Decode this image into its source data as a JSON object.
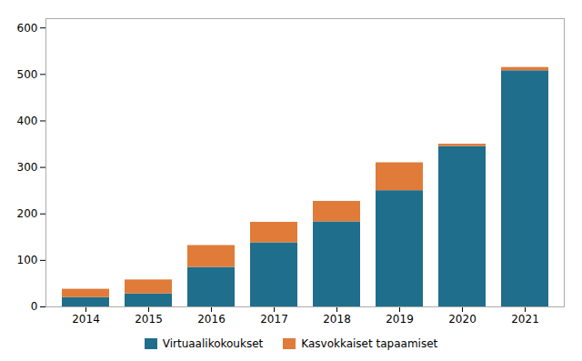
{
  "chart_data": {
    "type": "bar",
    "stacked": true,
    "categories": [
      "2014",
      "2015",
      "2016",
      "2017",
      "2018",
      "2019",
      "2020",
      "2021"
    ],
    "series": [
      {
        "name": "Virtuaalikokoukset",
        "color": "#1f6e8c",
        "values": [
          20,
          28,
          85,
          138,
          183,
          250,
          345,
          508
        ]
      },
      {
        "name": "Kasvokkaiset tapaamiset",
        "color": "#e07b39",
        "values": [
          18,
          30,
          47,
          44,
          44,
          60,
          5,
          7
        ]
      }
    ],
    "ylim": [
      0,
      620
    ],
    "yticks": [
      0,
      100,
      200,
      300,
      400,
      500,
      600
    ],
    "grid": false,
    "legend": "bottom"
  }
}
